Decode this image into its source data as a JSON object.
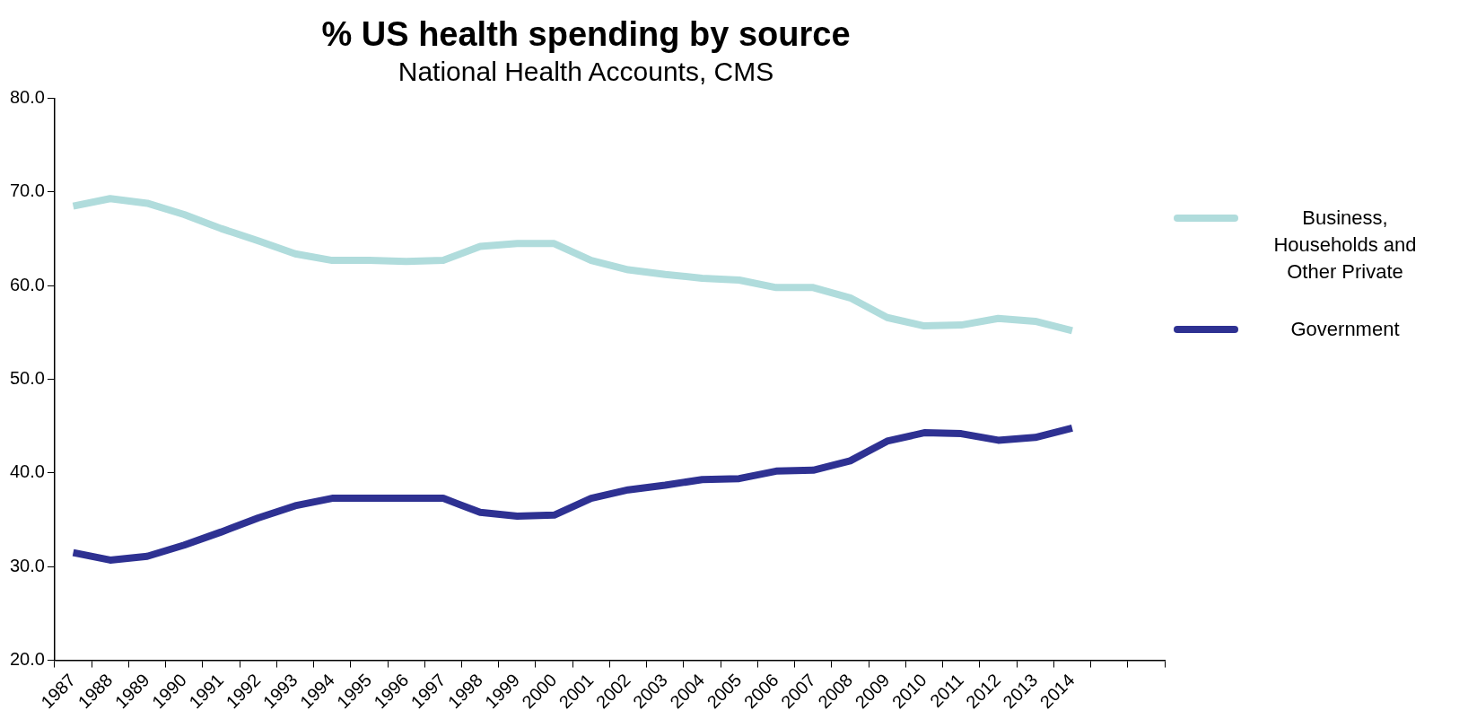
{
  "chart_data": {
    "type": "line",
    "title": "% US health spending by source",
    "subtitle": "National Health Accounts, CMS",
    "categories": [
      "1987",
      "1988",
      "1989",
      "1990",
      "1991",
      "1992",
      "1993",
      "1994",
      "1995",
      "1996",
      "1997",
      "1998",
      "1999",
      "2000",
      "2001",
      "2002",
      "2003",
      "2004",
      "2005",
      "2006",
      "2007",
      "2008",
      "2009",
      "2010",
      "2011",
      "2012",
      "2013",
      "2014",
      null,
      null
    ],
    "series": [
      {
        "name": "Business, Households and Other Private",
        "color": "#b0dcdc",
        "values": [
          68.5,
          69.3,
          68.8,
          67.6,
          66.1,
          64.8,
          63.4,
          62.7,
          62.7,
          62.6,
          62.7,
          64.2,
          64.5,
          64.5,
          62.7,
          61.7,
          61.2,
          60.8,
          60.6,
          59.8,
          59.8,
          58.7,
          56.6,
          55.7,
          55.8,
          56.5,
          56.2,
          55.2,
          null,
          null
        ]
      },
      {
        "name": "Government",
        "color": "#2e3192",
        "values": [
          31.5,
          30.7,
          31.1,
          32.3,
          33.7,
          35.2,
          36.5,
          37.3,
          37.3,
          37.3,
          37.3,
          35.8,
          35.4,
          35.5,
          37.3,
          38.2,
          38.7,
          39.3,
          39.4,
          40.2,
          40.3,
          41.3,
          43.4,
          44.3,
          44.2,
          43.5,
          43.8,
          44.8,
          null,
          null
        ]
      }
    ],
    "ylim": [
      20,
      80
    ],
    "yticks": [
      {
        "value": 20,
        "label": "20.0"
      },
      {
        "value": 30,
        "label": "30.0"
      },
      {
        "value": 40,
        "label": "40.0"
      },
      {
        "value": 50,
        "label": "50.0"
      },
      {
        "value": 60,
        "label": "60.0"
      },
      {
        "value": 70,
        "label": "70.0"
      },
      {
        "value": 80,
        "label": "80.0"
      }
    ],
    "grid": false,
    "legend": "right",
    "marker": "none",
    "line_style": "solid"
  }
}
